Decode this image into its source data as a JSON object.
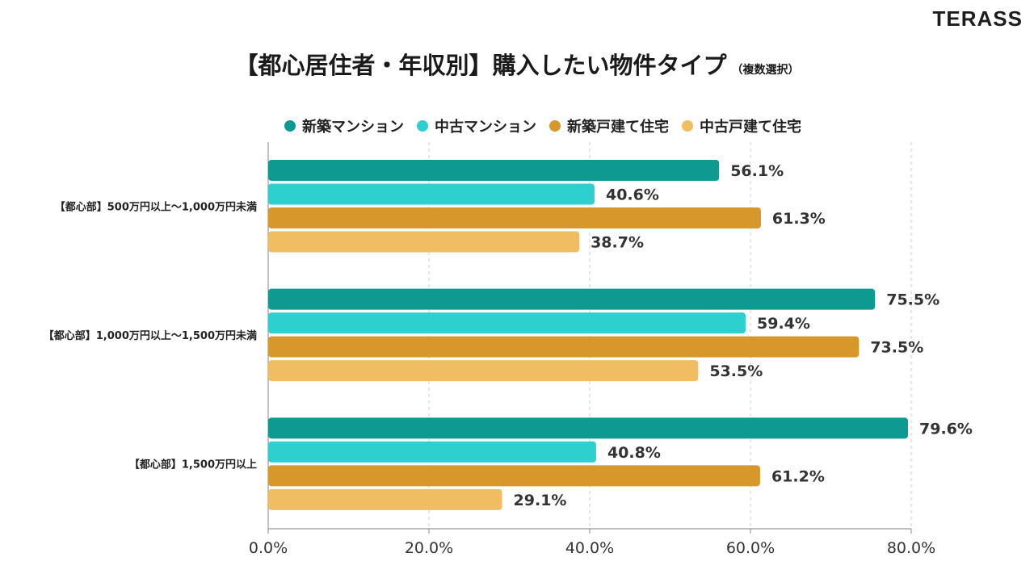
{
  "logo": "TERASS",
  "title": {
    "main": "【都心居住者・年収別】購入したい物件タイプ",
    "sub": "（複数選択）"
  },
  "chart_data": {
    "type": "bar",
    "orientation": "horizontal",
    "title": "【都心居住者・年収別】購入したい物件タイプ",
    "subtitle": "（複数選択）",
    "categories": [
      "【都心部】500万円以上～1,000万円未満",
      "【都心部】1,000万円以上～1,500万円未満",
      "【都心部】1,500万円以上"
    ],
    "series": [
      {
        "name": "新築マンション",
        "color": "#0e9a91",
        "values": [
          56.1,
          75.5,
          79.6
        ]
      },
      {
        "name": "中古マンション",
        "color": "#2ecfcf",
        "values": [
          40.6,
          59.4,
          40.8
        ]
      },
      {
        "name": "新築戸建て住宅",
        "color": "#d6982b",
        "values": [
          61.3,
          73.5,
          61.2
        ]
      },
      {
        "name": "中古戸建て住宅",
        "color": "#f0bd62",
        "values": [
          38.7,
          53.5,
          29.1
        ]
      }
    ],
    "value_labels": [
      [
        "56.1%",
        "40.6%",
        "61.3%",
        "38.7%"
      ],
      [
        "75.5%",
        "59.4%",
        "73.5%",
        "53.5%"
      ],
      [
        "79.6%",
        "40.8%",
        "61.2%",
        "29.1%"
      ]
    ],
    "xlim": [
      0,
      80
    ],
    "xticks": [
      "0.0%",
      "20.0%",
      "40.0%",
      "60.0%",
      "80.0%"
    ],
    "grid": "vertical-dashed",
    "legend_position": "top"
  }
}
